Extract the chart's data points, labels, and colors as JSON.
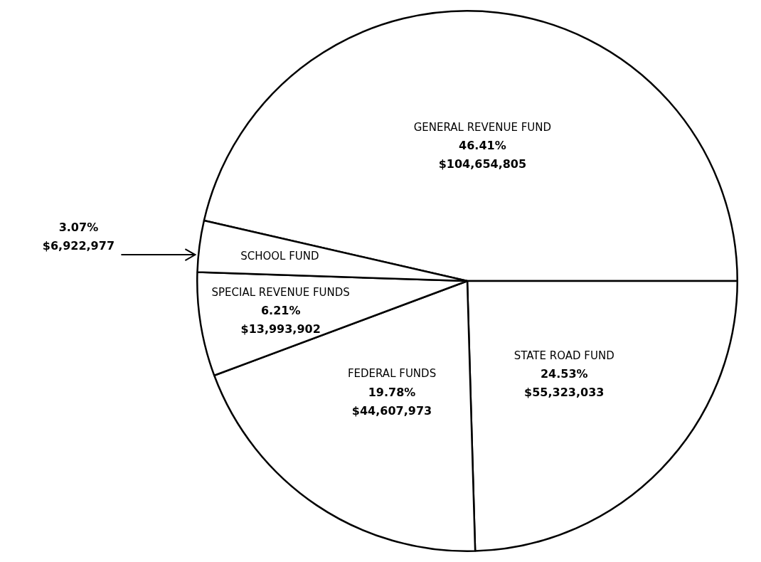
{
  "chart_data": {
    "type": "pie",
    "categories": [
      "GENERAL REVENUE FUND",
      "STATE ROAD FUND",
      "FEDERAL FUNDS",
      "SPECIAL REVENUE FUNDS",
      "SCHOOL FUND"
    ],
    "values": [
      104654805,
      55323033,
      44607973,
      13993902,
      6922977
    ],
    "value_labels": [
      "46.41%\n$104,654,805",
      "24.53%\n$55,323,033",
      "19.78%\n$44,607,973",
      "6.21%\n$13,993,902",
      "3.07%\n$6,922,977"
    ],
    "colors": [
      "#ffffff",
      "#ffffff",
      "#ffffff",
      "#ffffff",
      "#ffffff"
    ],
    "legend": false
  }
}
